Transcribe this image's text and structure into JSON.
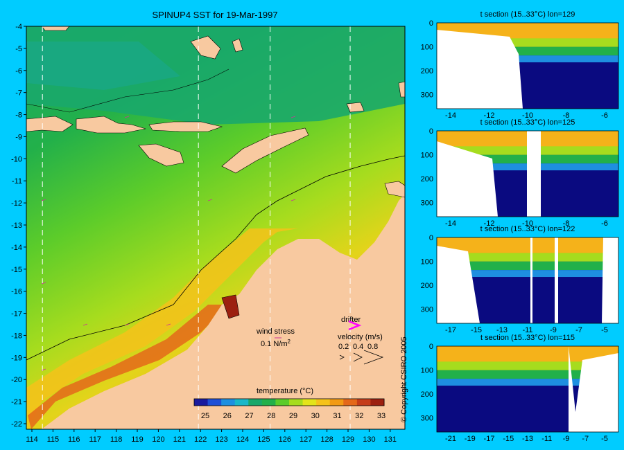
{
  "map": {
    "title": "SPINUP4 SST for 19-Mar-1997",
    "lat_ticks": [
      "-4",
      "-5",
      "-6",
      "-7",
      "-8",
      "-9",
      "-10",
      "-11",
      "-12",
      "-13",
      "-14",
      "-15",
      "-16",
      "-17",
      "-18",
      "-19",
      "-20",
      "-21",
      "-22"
    ],
    "lon_ticks": [
      "114",
      "115",
      "116",
      "117",
      "118",
      "119",
      "120",
      "121",
      "122",
      "123",
      "124",
      "125",
      "126",
      "127",
      "128",
      "129",
      "130",
      "131"
    ],
    "section_lines_lon": [
      114.5,
      121.9,
      125.3,
      129.1
    ],
    "wind_stress": {
      "label": "wind stress",
      "value_label": "0.1 N/m",
      "superscript": "2"
    },
    "drifter": {
      "label": "drifter",
      "velocity_label": "velocity (m/s)",
      "values": [
        "0.2",
        "0.4",
        "0.8"
      ]
    },
    "colorbar": {
      "title": "temperature (°C)",
      "ticks": [
        "25",
        "26",
        "27",
        "28",
        "29",
        "30",
        "31",
        "32",
        "33"
      ],
      "colors": [
        "#1a1a9e",
        "#1f4fd6",
        "#1e8fe0",
        "#19b7c8",
        "#19a86a",
        "#22b04a",
        "#5ccc2a",
        "#a6dc1e",
        "#e3e41a",
        "#f5c21a",
        "#f29a14",
        "#e4681a",
        "#c53d1a",
        "#9c2010"
      ]
    },
    "colors": {
      "land": "#f8c9a0",
      "background": "#00ccff"
    }
  },
  "sections": [
    {
      "title": "t section (15..33°C) lon=129",
      "yticks": [
        "0",
        "100",
        "200",
        "300"
      ],
      "xticks": [
        "-14",
        "-12",
        "-10",
        "-8",
        "-6"
      ]
    },
    {
      "title": "t section (15..33°C) lon=125",
      "yticks": [
        "0",
        "100",
        "200",
        "300"
      ],
      "xticks": [
        "-14",
        "-12",
        "-10",
        "-8",
        "-6"
      ]
    },
    {
      "title": "t section (15..33°C) lon=122",
      "yticks": [
        "0",
        "100",
        "200",
        "300"
      ],
      "xticks": [
        "-17",
        "-15",
        "-13",
        "-11",
        "-9",
        "-7",
        "-5"
      ]
    },
    {
      "title": "t section (15..33°C) lon=115",
      "yticks": [
        "0",
        "100",
        "200",
        "300"
      ],
      "xticks": [
        "-21",
        "-19",
        "-17",
        "-15",
        "-13",
        "-11",
        "-9",
        "-7",
        "-5"
      ]
    }
  ],
  "copyright": "© Copyright CSIRO 2005"
}
